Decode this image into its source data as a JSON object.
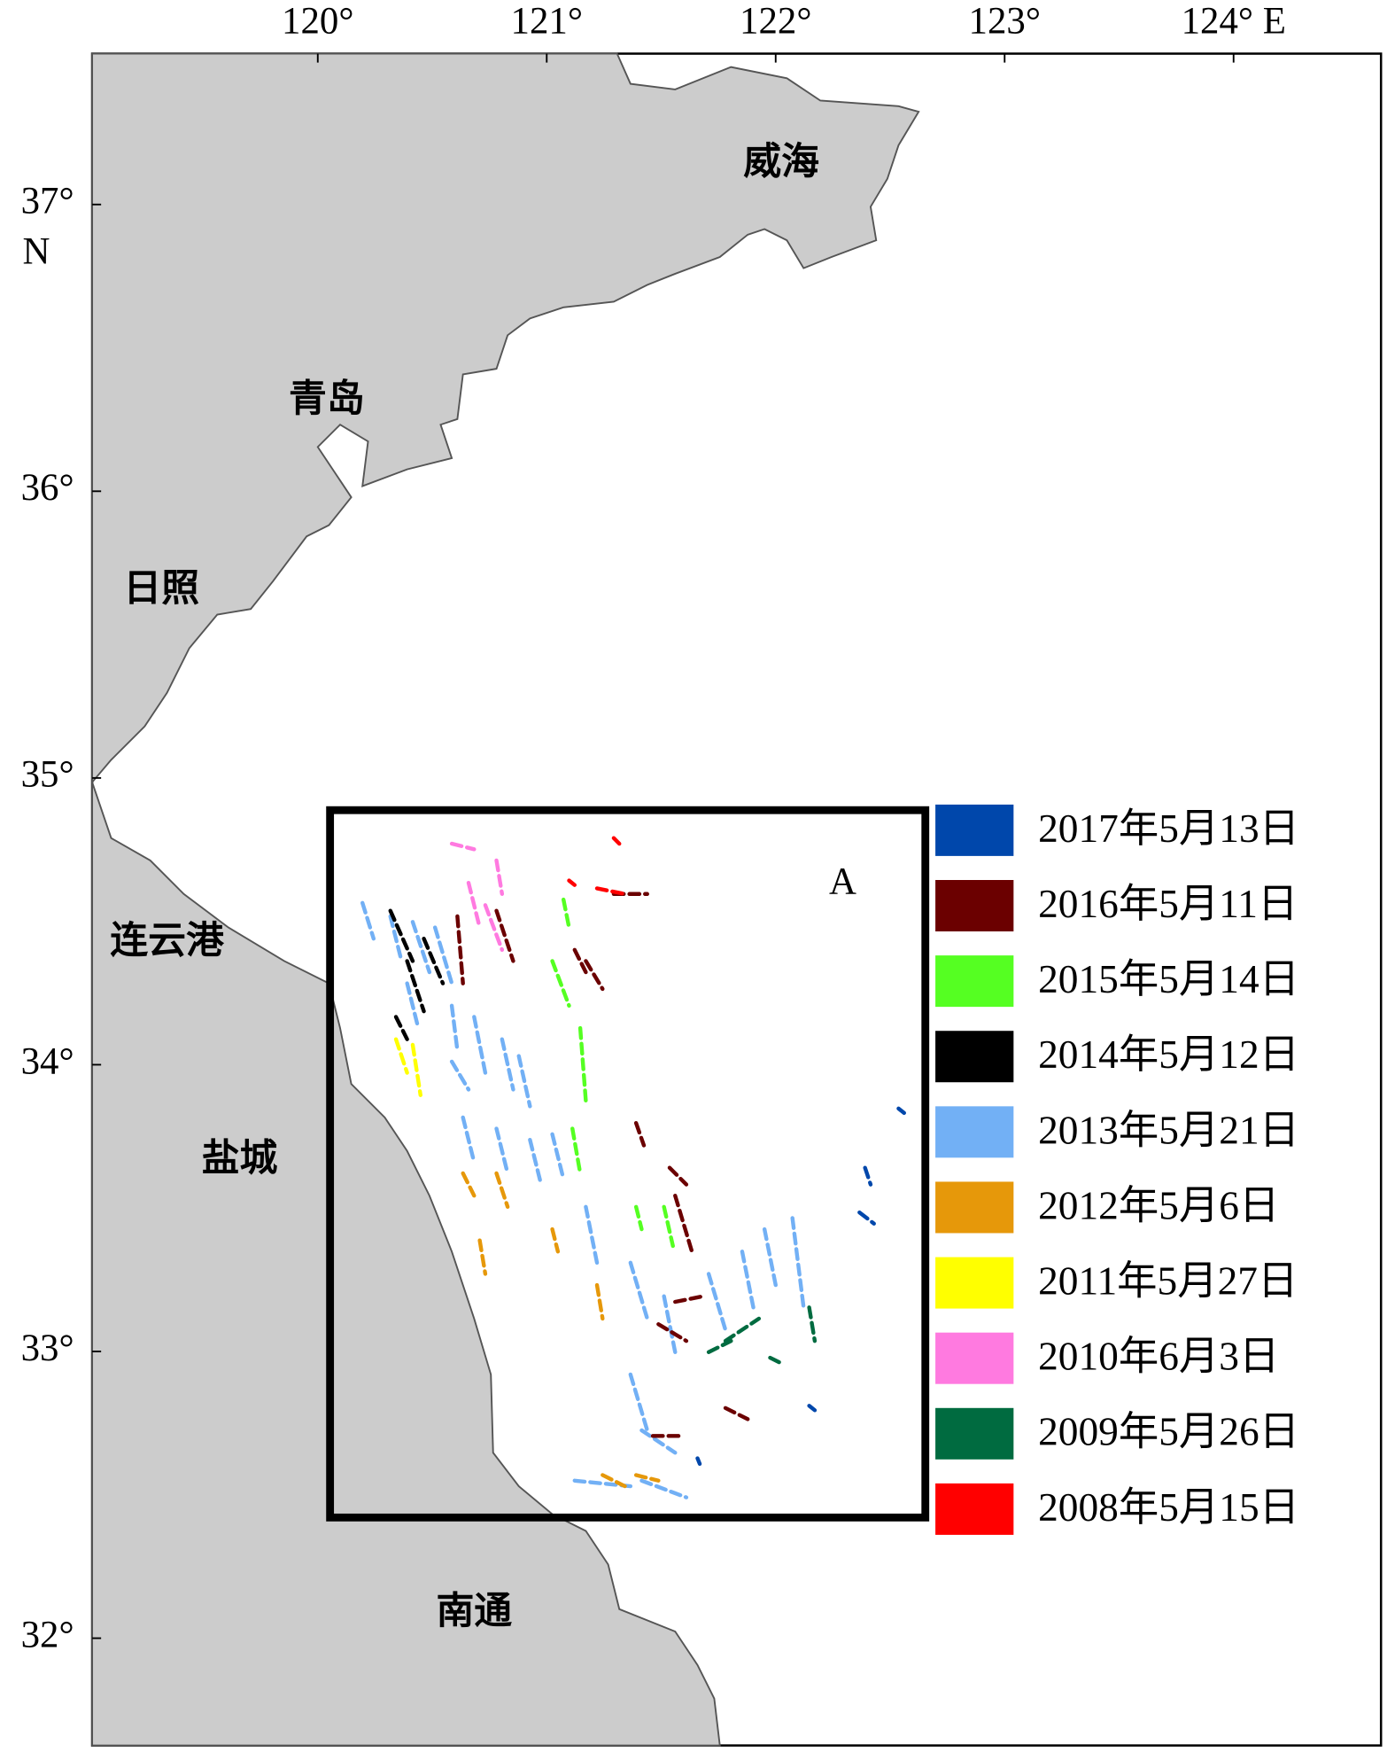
{
  "map": {
    "xticks": [
      {
        "value": 120,
        "label": "120°"
      },
      {
        "value": 121,
        "label": "121°"
      },
      {
        "value": 122,
        "label": "122°"
      },
      {
        "value": 123,
        "label": "123°"
      },
      {
        "value": 124,
        "label": "124° E"
      }
    ],
    "yticks": [
      {
        "value": 37,
        "label": "37°"
      },
      {
        "value": 36,
        "label": "36°"
      },
      {
        "value": 35,
        "label": "35°"
      },
      {
        "value": 34,
        "label": "34°"
      },
      {
        "value": 33,
        "label": "33°"
      },
      {
        "value": 32,
        "label": "32°"
      }
    ],
    "y_unit": "N",
    "cities": [
      "威海",
      "青岛",
      "日照",
      "连云港",
      "盐城",
      "南通"
    ],
    "box_label": "A",
    "legend": [
      {
        "label": "2017年5月13日",
        "color": "#0047ab"
      },
      {
        "label": "2016年5月11日",
        "color": "#6b0000"
      },
      {
        "label": "2015年5月14日",
        "color": "#55ff22"
      },
      {
        "label": "2014年5月12日",
        "color": "#000000"
      },
      {
        "label": "2013年5月21日",
        "color": "#72b0f5"
      },
      {
        "label": "2012年5月6日",
        "color": "#e6980a"
      },
      {
        "label": "2011年5月27日",
        "color": "#ffff00"
      },
      {
        "label": "2010年6月3日",
        "color": "#ff7ae0"
      },
      {
        "label": "2009年5月26日",
        "color": "#006b40"
      },
      {
        "label": "2008年5月15日",
        "color": "#ff0000"
      }
    ]
  }
}
